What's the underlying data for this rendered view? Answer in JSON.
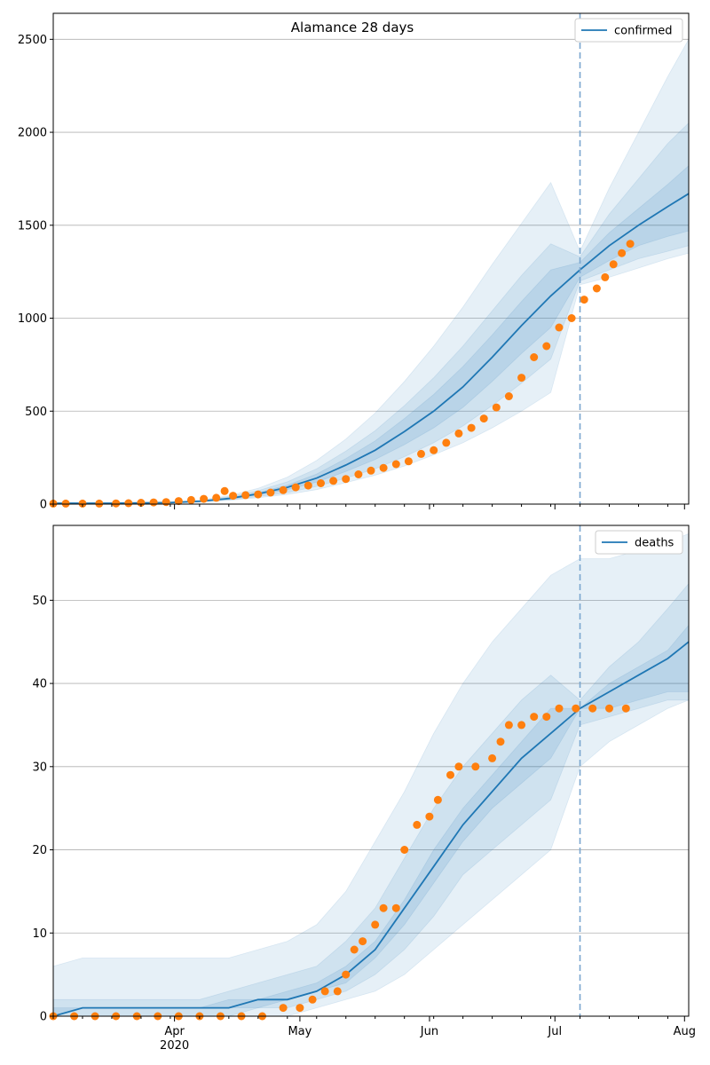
{
  "chart_data": [
    {
      "type": "line",
      "title": "Alamance 28 days",
      "ylim": [
        0,
        2640
      ],
      "yticks": [
        0,
        500,
        1000,
        1500,
        2000,
        2500
      ],
      "xlim": [
        "2020-03-03",
        "2020-08-02"
      ],
      "grid": "horizontal",
      "legend": {
        "position": "top-right",
        "entries": [
          "confirmed"
        ]
      },
      "forecast_start": "2020-07-07",
      "series": [
        {
          "name": "confirmed",
          "kind": "model-median-with-bands",
          "x": [
            "2020-03-03",
            "2020-03-10",
            "2020-03-17",
            "2020-03-24",
            "2020-03-31",
            "2020-04-07",
            "2020-04-14",
            "2020-04-21",
            "2020-04-28",
            "2020-05-05",
            "2020-05-12",
            "2020-05-19",
            "2020-05-26",
            "2020-06-02",
            "2020-06-09",
            "2020-06-16",
            "2020-06-23",
            "2020-06-30",
            "2020-07-07",
            "2020-07-14",
            "2020-07-21",
            "2020-07-28",
            "2020-08-02"
          ],
          "median": [
            5,
            5,
            5,
            6,
            8,
            15,
            30,
            55,
            90,
            140,
            210,
            290,
            390,
            500,
            630,
            790,
            960,
            1120,
            1260,
            1390,
            1500,
            1600,
            1670
          ],
          "band_inner": [
            [
              5,
              5
            ],
            [
              5,
              5
            ],
            [
              5,
              5
            ],
            [
              6,
              6
            ],
            [
              8,
              9
            ],
            [
              14,
              17
            ],
            [
              27,
              34
            ],
            [
              48,
              62
            ],
            [
              78,
              102
            ],
            [
              118,
              162
            ],
            [
              175,
              245
            ],
            [
              240,
              340
            ],
            [
              320,
              460
            ],
            [
              410,
              590
            ],
            [
              520,
              740
            ],
            [
              660,
              910
            ],
            [
              810,
              1090
            ],
            [
              950,
              1260
            ],
            [
              1220,
              1300
            ],
            [
              1310,
              1460
            ],
            [
              1390,
              1590
            ],
            [
              1440,
              1720
            ],
            [
              1470,
              1820
            ]
          ],
          "band_mid": [
            [
              5,
              5
            ],
            [
              5,
              5
            ],
            [
              5,
              5
            ],
            [
              6,
              7
            ],
            [
              7,
              10
            ],
            [
              12,
              19
            ],
            [
              23,
              39
            ],
            [
              40,
              72
            ],
            [
              62,
              120
            ],
            [
              95,
              190
            ],
            [
              140,
              285
            ],
            [
              190,
              395
            ],
            [
              255,
              530
            ],
            [
              330,
              680
            ],
            [
              420,
              850
            ],
            [
              530,
              1040
            ],
            [
              650,
              1230
            ],
            [
              780,
              1400
            ],
            [
              1200,
              1330
            ],
            [
              1260,
              1560
            ],
            [
              1320,
              1750
            ],
            [
              1360,
              1940
            ],
            [
              1390,
              2050
            ]
          ],
          "band_outer": [
            [
              5,
              5
            ],
            [
              5,
              5
            ],
            [
              5,
              5
            ],
            [
              5,
              8
            ],
            [
              7,
              11
            ],
            [
              11,
              22
            ],
            [
              20,
              45
            ],
            [
              34,
              85
            ],
            [
              52,
              145
            ],
            [
              78,
              235
            ],
            [
              115,
              350
            ],
            [
              155,
              490
            ],
            [
              205,
              660
            ],
            [
              265,
              850
            ],
            [
              330,
              1060
            ],
            [
              410,
              1290
            ],
            [
              500,
              1510
            ],
            [
              600,
              1730
            ],
            [
              1180,
              1360
            ],
            [
              1220,
              1700
            ],
            [
              1270,
              2000
            ],
            [
              1320,
              2300
            ],
            [
              1350,
              2500
            ]
          ]
        },
        {
          "name": "observed",
          "kind": "scatter",
          "points": [
            [
              "2020-03-03",
              3
            ],
            [
              "2020-03-06",
              3
            ],
            [
              "2020-03-10",
              3
            ],
            [
              "2020-03-14",
              3
            ],
            [
              "2020-03-18",
              4
            ],
            [
              "2020-03-21",
              5
            ],
            [
              "2020-03-24",
              7
            ],
            [
              "2020-03-27",
              9
            ],
            [
              "2020-03-30",
              11
            ],
            [
              "2020-04-02",
              16
            ],
            [
              "2020-04-05",
              22
            ],
            [
              "2020-04-08",
              28
            ],
            [
              "2020-04-11",
              34
            ],
            [
              "2020-04-13",
              70
            ],
            [
              "2020-04-15",
              45
            ],
            [
              "2020-04-18",
              48
            ],
            [
              "2020-04-21",
              52
            ],
            [
              "2020-04-24",
              62
            ],
            [
              "2020-04-27",
              75
            ],
            [
              "2020-04-30",
              90
            ],
            [
              "2020-05-03",
              100
            ],
            [
              "2020-05-06",
              112
            ],
            [
              "2020-05-09",
              125
            ],
            [
              "2020-05-12",
              135
            ],
            [
              "2020-05-15",
              160
            ],
            [
              "2020-05-18",
              180
            ],
            [
              "2020-05-21",
              195
            ],
            [
              "2020-05-24",
              215
            ],
            [
              "2020-05-27",
              230
            ],
            [
              "2020-05-30",
              270
            ],
            [
              "2020-06-02",
              290
            ],
            [
              "2020-06-05",
              330
            ],
            [
              "2020-06-08",
              380
            ],
            [
              "2020-06-11",
              410
            ],
            [
              "2020-06-14",
              460
            ],
            [
              "2020-06-17",
              520
            ],
            [
              "2020-06-20",
              580
            ],
            [
              "2020-06-23",
              680
            ],
            [
              "2020-06-26",
              790
            ],
            [
              "2020-06-29",
              850
            ],
            [
              "2020-07-02",
              950
            ],
            [
              "2020-07-05",
              1000
            ],
            [
              "2020-07-08",
              1100
            ],
            [
              "2020-07-11",
              1160
            ],
            [
              "2020-07-13",
              1220
            ],
            [
              "2020-07-15",
              1290
            ],
            [
              "2020-07-17",
              1350
            ],
            [
              "2020-07-19",
              1400
            ]
          ]
        }
      ]
    },
    {
      "type": "line",
      "title": "",
      "ylim": [
        0,
        59
      ],
      "yticks": [
        0,
        10,
        20,
        30,
        40,
        50
      ],
      "xlim": [
        "2020-03-03",
        "2020-08-02"
      ],
      "xticks": [
        "Apr\n2020",
        "May",
        "Jun",
        "Jul",
        "Aug"
      ],
      "grid": "horizontal",
      "legend": {
        "position": "top-right",
        "entries": [
          "deaths"
        ]
      },
      "forecast_start": "2020-07-07",
      "series": [
        {
          "name": "deaths",
          "kind": "model-median-with-bands",
          "x": [
            "2020-03-03",
            "2020-03-10",
            "2020-03-17",
            "2020-03-24",
            "2020-03-31",
            "2020-04-07",
            "2020-04-14",
            "2020-04-21",
            "2020-04-28",
            "2020-05-05",
            "2020-05-12",
            "2020-05-19",
            "2020-05-26",
            "2020-06-02",
            "2020-06-09",
            "2020-06-16",
            "2020-06-23",
            "2020-06-30",
            "2020-07-07",
            "2020-07-14",
            "2020-07-21",
            "2020-07-28",
            "2020-08-02"
          ],
          "median": [
            0,
            1,
            1,
            1,
            1,
            1,
            1,
            2,
            2,
            3,
            5,
            8,
            13,
            18,
            23,
            27,
            31,
            34,
            37,
            39,
            41,
            43,
            45
          ],
          "band_inner": [
            [
              0,
              1
            ],
            [
              1,
              1
            ],
            [
              1,
              1
            ],
            [
              1,
              1
            ],
            [
              1,
              1
            ],
            [
              1,
              1
            ],
            [
              1,
              2
            ],
            [
              1,
              2
            ],
            [
              2,
              3
            ],
            [
              3,
              4
            ],
            [
              4,
              6
            ],
            [
              7,
              9
            ],
            [
              11,
              14
            ],
            [
              16,
              20
            ],
            [
              21,
              25
            ],
            [
              25,
              29
            ],
            [
              28,
              33
            ],
            [
              31,
              37
            ],
            [
              37,
              37
            ],
            [
              37,
              40
            ],
            [
              38,
              42
            ],
            [
              39,
              44
            ],
            [
              39,
              47
            ]
          ],
          "band_mid": [
            [
              0,
              2
            ],
            [
              0,
              2
            ],
            [
              0,
              2
            ],
            [
              0,
              2
            ],
            [
              0,
              2
            ],
            [
              0,
              2
            ],
            [
              0,
              3
            ],
            [
              1,
              4
            ],
            [
              1,
              5
            ],
            [
              2,
              6
            ],
            [
              3,
              9
            ],
            [
              5,
              13
            ],
            [
              8,
              19
            ],
            [
              12,
              25
            ],
            [
              17,
              30
            ],
            [
              20,
              34
            ],
            [
              23,
              38
            ],
            [
              26,
              41
            ],
            [
              35,
              38
            ],
            [
              36,
              42
            ],
            [
              37,
              45
            ],
            [
              38,
              49
            ],
            [
              38,
              52
            ]
          ],
          "band_outer": [
            [
              0,
              6
            ],
            [
              0,
              7
            ],
            [
              0,
              7
            ],
            [
              0,
              7
            ],
            [
              0,
              7
            ],
            [
              0,
              7
            ],
            [
              0,
              7
            ],
            [
              0,
              8
            ],
            [
              0,
              9
            ],
            [
              1,
              11
            ],
            [
              2,
              15
            ],
            [
              3,
              21
            ],
            [
              5,
              27
            ],
            [
              8,
              34
            ],
            [
              11,
              40
            ],
            [
              14,
              45
            ],
            [
              17,
              49
            ],
            [
              20,
              53
            ],
            [
              30,
              55
            ],
            [
              33,
              55
            ],
            [
              35,
              56
            ],
            [
              37,
              57
            ],
            [
              38,
              58
            ]
          ]
        },
        {
          "name": "observed",
          "kind": "scatter",
          "points": [
            [
              "2020-03-03",
              0
            ],
            [
              "2020-03-08",
              0
            ],
            [
              "2020-03-13",
              0
            ],
            [
              "2020-03-18",
              0
            ],
            [
              "2020-03-23",
              0
            ],
            [
              "2020-03-28",
              0
            ],
            [
              "2020-04-02",
              0
            ],
            [
              "2020-04-07",
              0
            ],
            [
              "2020-04-12",
              0
            ],
            [
              "2020-04-17",
              0
            ],
            [
              "2020-04-22",
              0
            ],
            [
              "2020-04-27",
              1
            ],
            [
              "2020-05-01",
              1
            ],
            [
              "2020-05-04",
              2
            ],
            [
              "2020-05-07",
              3
            ],
            [
              "2020-05-10",
              3
            ],
            [
              "2020-05-12",
              5
            ],
            [
              "2020-05-14",
              8
            ],
            [
              "2020-05-16",
              9
            ],
            [
              "2020-05-19",
              11
            ],
            [
              "2020-05-21",
              13
            ],
            [
              "2020-05-24",
              13
            ],
            [
              "2020-05-26",
              20
            ],
            [
              "2020-05-29",
              23
            ],
            [
              "2020-06-01",
              24
            ],
            [
              "2020-06-03",
              26
            ],
            [
              "2020-06-06",
              29
            ],
            [
              "2020-06-08",
              30
            ],
            [
              "2020-06-12",
              30
            ],
            [
              "2020-06-16",
              31
            ],
            [
              "2020-06-18",
              33
            ],
            [
              "2020-06-20",
              35
            ],
            [
              "2020-06-23",
              35
            ],
            [
              "2020-06-26",
              36
            ],
            [
              "2020-06-29",
              36
            ],
            [
              "2020-07-02",
              37
            ],
            [
              "2020-07-06",
              37
            ],
            [
              "2020-07-10",
              37
            ],
            [
              "2020-07-14",
              37
            ],
            [
              "2020-07-18",
              37
            ]
          ]
        }
      ]
    }
  ],
  "colors": {
    "median": "#1f77b4",
    "band": "#1f77b4",
    "observed": "#ff7f0e",
    "grid": "#b0b0b0",
    "forecast_line": "#7aa6cf"
  }
}
